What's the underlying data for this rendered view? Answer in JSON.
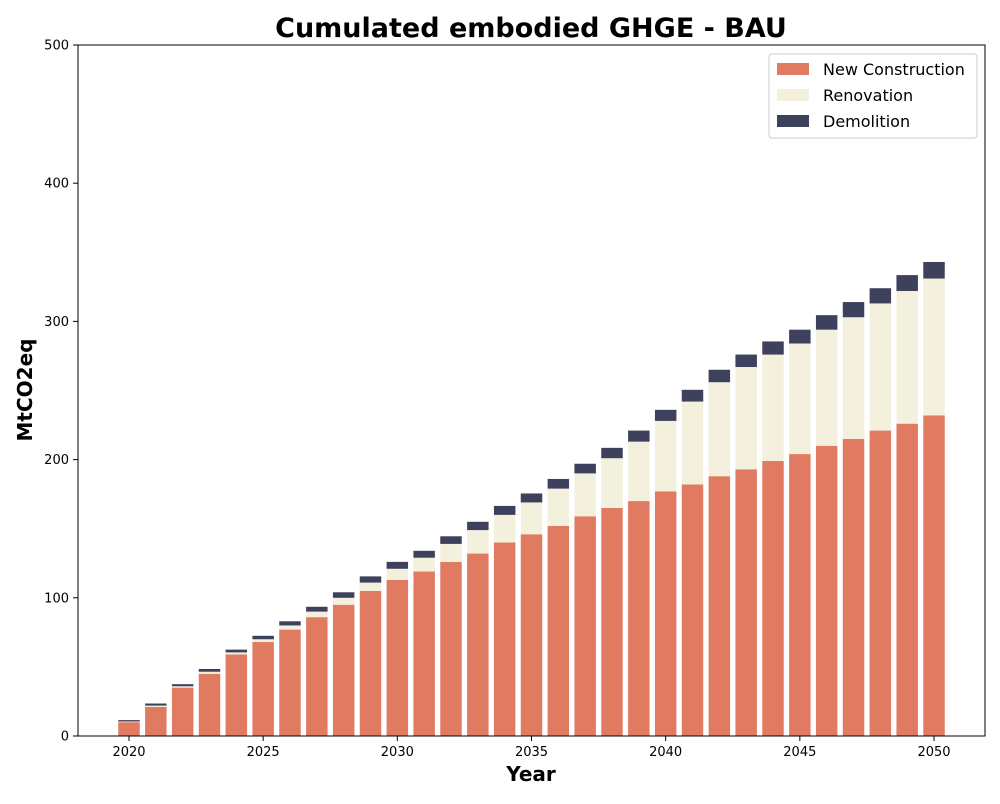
{
  "chart_data": {
    "type": "bar",
    "stacked": true,
    "title": "Cumulated embodied GHGE - BAU",
    "xlabel": "Year",
    "ylabel": "MtCO2eq",
    "ylim": [
      0,
      500
    ],
    "xlim": [
      2018.1,
      2051.9
    ],
    "x_ticks": [
      2020,
      2025,
      2030,
      2035,
      2040,
      2045,
      2050
    ],
    "y_ticks": [
      0,
      100,
      200,
      300,
      400,
      500
    ],
    "grid": false,
    "legend_position": "top-right",
    "categories": [
      2020,
      2021,
      2022,
      2023,
      2024,
      2025,
      2026,
      2027,
      2028,
      2029,
      2030,
      2031,
      2032,
      2033,
      2034,
      2035,
      2036,
      2037,
      2038,
      2039,
      2040,
      2041,
      2042,
      2043,
      2044,
      2045,
      2046,
      2047,
      2048,
      2049,
      2050
    ],
    "series": [
      {
        "name": "New Construction",
        "color": "#e07b61",
        "values": [
          10,
          21,
          35,
          45,
          59,
          68,
          77,
          86,
          95,
          105,
          113,
          119,
          126,
          132,
          140,
          146,
          152,
          159,
          165,
          170,
          177,
          182,
          188,
          193,
          199,
          204,
          210,
          215,
          221,
          226,
          232
        ]
      },
      {
        "name": "Renovation",
        "color": "#f3f0de",
        "values": [
          0.5,
          1,
          1,
          1.5,
          1.5,
          2,
          3,
          4,
          5,
          6,
          8,
          10,
          13,
          17,
          20,
          23,
          27,
          31,
          36,
          43,
          51,
          60,
          68,
          74,
          77,
          80,
          84,
          88,
          92,
          96,
          99
        ]
      },
      {
        "name": "Demolition",
        "color": "#3d415b",
        "values": [
          1,
          1.5,
          1.5,
          2,
          2,
          2.5,
          3,
          3.5,
          4,
          4.5,
          5,
          5,
          5.5,
          6,
          6.5,
          6.5,
          7,
          7,
          7.5,
          8,
          8,
          8.5,
          9,
          9,
          9.5,
          10,
          10.5,
          11,
          11,
          11.5,
          12
        ]
      }
    ]
  }
}
